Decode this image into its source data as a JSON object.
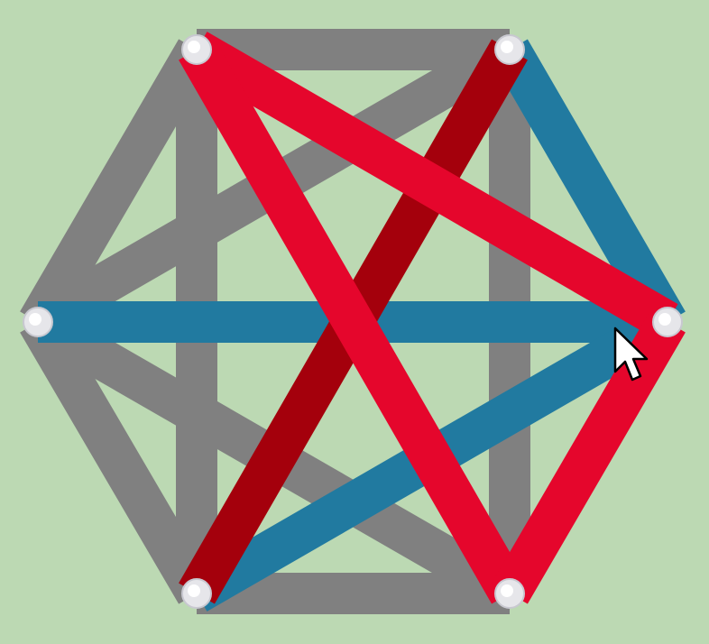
{
  "game": {
    "background_color": "#bcd9b3",
    "edge_colors": {
      "gray": "#808080",
      "red": "#e5062c",
      "darkred": "#a4000c",
      "blue": "#217aa0"
    },
    "vertices": [
      {
        "id": "top-left"
      },
      {
        "id": "top-right"
      },
      {
        "id": "right"
      },
      {
        "id": "bottom-right"
      },
      {
        "id": "bottom-left"
      },
      {
        "id": "left"
      }
    ],
    "edges": [
      {
        "from": "top-left",
        "to": "top-right",
        "color": "gray"
      },
      {
        "from": "left",
        "to": "top-left",
        "color": "gray"
      },
      {
        "from": "top-left",
        "to": "bottom-left",
        "color": "gray"
      },
      {
        "from": "top-right",
        "to": "bottom-right",
        "color": "gray"
      },
      {
        "from": "left",
        "to": "bottom-left",
        "color": "gray"
      },
      {
        "from": "bottom-left",
        "to": "bottom-right",
        "color": "gray"
      },
      {
        "from": "left",
        "to": "top-right",
        "color": "gray"
      },
      {
        "from": "left",
        "to": "bottom-right",
        "color": "gray"
      },
      {
        "from": "top-right",
        "to": "right",
        "color": "blue"
      },
      {
        "from": "left",
        "to": "right",
        "color": "blue"
      },
      {
        "from": "right",
        "to": "bottom-left",
        "color": "blue"
      },
      {
        "from": "top-right",
        "to": "bottom-left",
        "color": "darkred"
      },
      {
        "from": "top-left",
        "to": "right",
        "color": "red"
      },
      {
        "from": "top-left",
        "to": "bottom-right",
        "color": "red"
      },
      {
        "from": "right",
        "to": "bottom-right",
        "color": "red"
      }
    ],
    "cursor": "arrow-pointer"
  }
}
